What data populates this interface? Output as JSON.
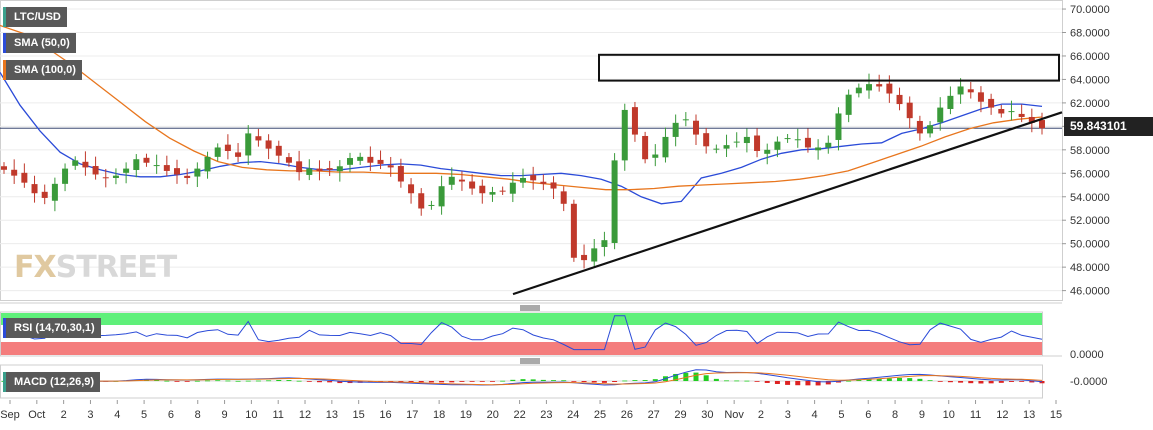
{
  "symbol": "LTC/USD",
  "indicators": {
    "sma50": {
      "label": "SMA (50,0)",
      "color": "#2b4bd8"
    },
    "sma100": {
      "label": "SMA (100,0)",
      "color": "#e8761e"
    },
    "rsi": {
      "label": "RSI (14,70,30,1)",
      "color": "#2b4bd8"
    },
    "macd": {
      "label": "MACD (12,26,9)"
    }
  },
  "last_price": "59.843101",
  "watermark": {
    "part1": "FX",
    "part2": "STREET"
  },
  "rsi_axis_label": "0.0000",
  "macd_axis_label": "-0.0000",
  "colors": {
    "up": "#3a9a3a",
    "down": "#c0392b",
    "trendline": "#111111",
    "macd_pos": "#22cc22",
    "macd_neg": "#dd2222"
  },
  "chart_data": {
    "type": "candlestick",
    "y_ticks": [
      "70.0000",
      "68.0000",
      "66.0000",
      "64.0000",
      "62.0000",
      "60.0000",
      "58.0000",
      "56.0000",
      "54.0000",
      "52.0000",
      "50.0000",
      "48.0000",
      "46.0000"
    ],
    "ylim": [
      45.2,
      70.6
    ],
    "x_ticks": [
      "Sep",
      "Oct",
      "2",
      "3",
      "4",
      "5",
      "6",
      "8",
      "9",
      "10",
      "11",
      "12",
      "13",
      "15",
      "16",
      "17",
      "18",
      "19",
      "20",
      "22",
      "23",
      "24",
      "25",
      "26",
      "27",
      "29",
      "30",
      "Nov",
      "2",
      "3",
      "4",
      "5",
      "6",
      "8",
      "9",
      "10",
      "11",
      "12",
      "13",
      "15"
    ],
    "close_series": [
      56.3,
      55.8,
      55.2,
      54.3,
      53.9,
      55.1,
      56.4,
      57.1,
      56.5,
      55.9,
      55.6,
      55.8,
      56.4,
      57.2,
      56.9,
      56.7,
      56.2,
      55.9,
      55.6,
      56.4,
      57.4,
      58.2,
      57.9,
      57.4,
      59.4,
      58.8,
      58.1,
      57.5,
      56.9,
      56.1,
      56.4,
      56.2,
      56.3,
      56.6,
      57.3,
      57.4,
      56.9,
      56.8,
      56.5,
      55.3,
      54.3,
      53.0,
      53.3,
      54.9,
      55.7,
      55.3,
      54.7,
      54.3,
      54.4,
      54.5,
      55.2,
      55.6,
      55.4,
      55.1,
      54.7,
      53.4,
      48.8,
      48.6,
      49.6,
      50.3,
      57.1,
      61.4,
      59.3,
      57.2,
      57.6,
      59.1,
      60.3,
      60.6,
      59.3,
      58.3,
      58.1,
      58.4,
      58.7,
      59.1,
      57.9,
      58.0,
      58.7,
      59.0,
      58.9,
      58.2,
      58.2,
      58.6,
      61.1,
      62.7,
      63.3,
      63.6,
      63.4,
      62.8,
      61.9,
      60.7,
      59.4,
      60.1,
      61.6,
      62.6,
      63.4,
      62.9,
      62.1,
      61.6,
      61.1,
      61.3,
      60.8,
      60.3,
      59.84
    ],
    "series": [
      {
        "name": "SMA (50,0)",
        "values": [
          64.6,
          61.8,
          59.6,
          57.8,
          56.8,
          56.3,
          55.9,
          55.7,
          55.7,
          55.9,
          56.2,
          56.6,
          56.9,
          57.0,
          56.8,
          56.5,
          56.3,
          56.3,
          56.5,
          56.7,
          56.8,
          56.7,
          56.4,
          56.2,
          56.0,
          55.8,
          55.8,
          55.9,
          56.0,
          55.8,
          55.5,
          54.9,
          54.0,
          53.4,
          53.6,
          55.6,
          56.0,
          56.5,
          57.2,
          57.7,
          58.0,
          58.1,
          58.3,
          58.5,
          58.6,
          59.4,
          59.8,
          60.3,
          60.9,
          61.5,
          61.9,
          61.9,
          61.7
        ]
      },
      {
        "name": "SMA (100,0)",
        "values": [
          68.6,
          67.9,
          66.6,
          65.2,
          63.6,
          62.0,
          60.4,
          59.0,
          57.9,
          57.0,
          56.5,
          56.3,
          56.2,
          56.2,
          56.1,
          56.1,
          56.0,
          56.0,
          56.0,
          55.9,
          55.7,
          55.5,
          55.2,
          55.0,
          54.8,
          54.6,
          54.6,
          54.7,
          54.9,
          55.0,
          55.1,
          55.2,
          55.3,
          55.5,
          55.8,
          56.2,
          56.9,
          57.6,
          58.3,
          59.1,
          59.8,
          60.3,
          60.6,
          60.8
        ]
      }
    ],
    "rsi_levels": {
      "overbought": 70,
      "oversold": 30
    },
    "annotations": [
      "resistance box 63.9–66.1 (Oct 25 – Nov 15)",
      "ascending trendline from Oct 23 to Nov 15"
    ]
  }
}
